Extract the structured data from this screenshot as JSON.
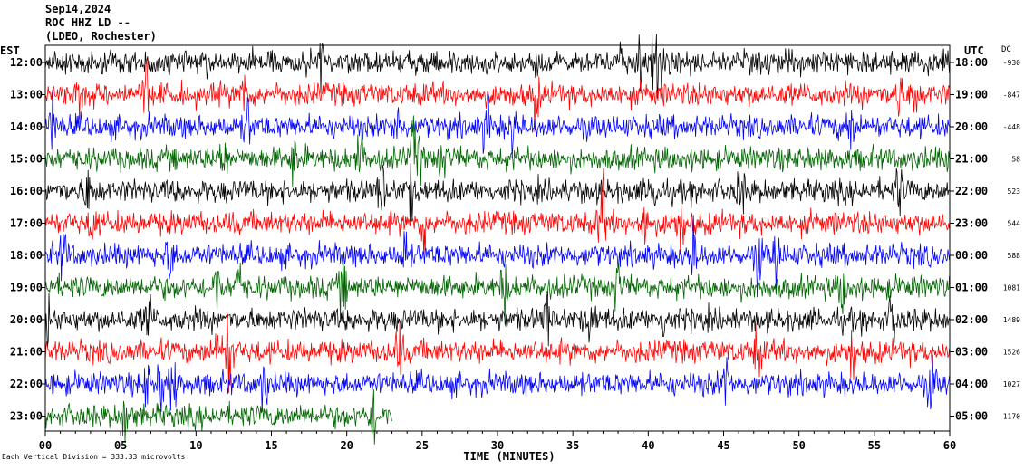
{
  "header": {
    "line1": "Sep14,2024",
    "line2": "ROC HHZ LD --",
    "line3": "(LDEO, Rochester)"
  },
  "footer": {
    "text": "Each Vertical Division =  333.33 microvolts"
  },
  "chart_data": {
    "type": "line",
    "xlabel": "TIME (MINUTES)",
    "x_ticks": [
      "00",
      "05",
      "10",
      "15",
      "20",
      "25",
      "30",
      "35",
      "40",
      "45",
      "50",
      "55",
      "60"
    ],
    "left_axis_label": "EST",
    "right_axis_label": "UTC",
    "dc_label": "DC",
    "trace_colors": [
      "#000000",
      "#ff0000",
      "#0000ff",
      "#006400"
    ],
    "rows": [
      {
        "est": "12:00",
        "utc": "18:00",
        "dc": "-930"
      },
      {
        "est": "13:00",
        "utc": "19:00",
        "dc": "-847"
      },
      {
        "est": "14:00",
        "utc": "20:00",
        "dc": "-448"
      },
      {
        "est": "15:00",
        "utc": "21:00",
        "dc": "58"
      },
      {
        "est": "16:00",
        "utc": "22:00",
        "dc": "523"
      },
      {
        "est": "17:00",
        "utc": "23:00",
        "dc": "544"
      },
      {
        "est": "18:00",
        "utc": "00:00",
        "dc": "588"
      },
      {
        "est": "19:00",
        "utc": "01:00",
        "dc": "1081"
      },
      {
        "est": "20:00",
        "utc": "02:00",
        "dc": "1489"
      },
      {
        "est": "21:00",
        "utc": "03:00",
        "dc": "1526"
      },
      {
        "est": "22:00",
        "utc": "04:00",
        "dc": "1027"
      },
      {
        "est": "23:00",
        "utc": "05:00",
        "dc": "1170"
      }
    ],
    "last_trace_end_minutes": 23
  }
}
